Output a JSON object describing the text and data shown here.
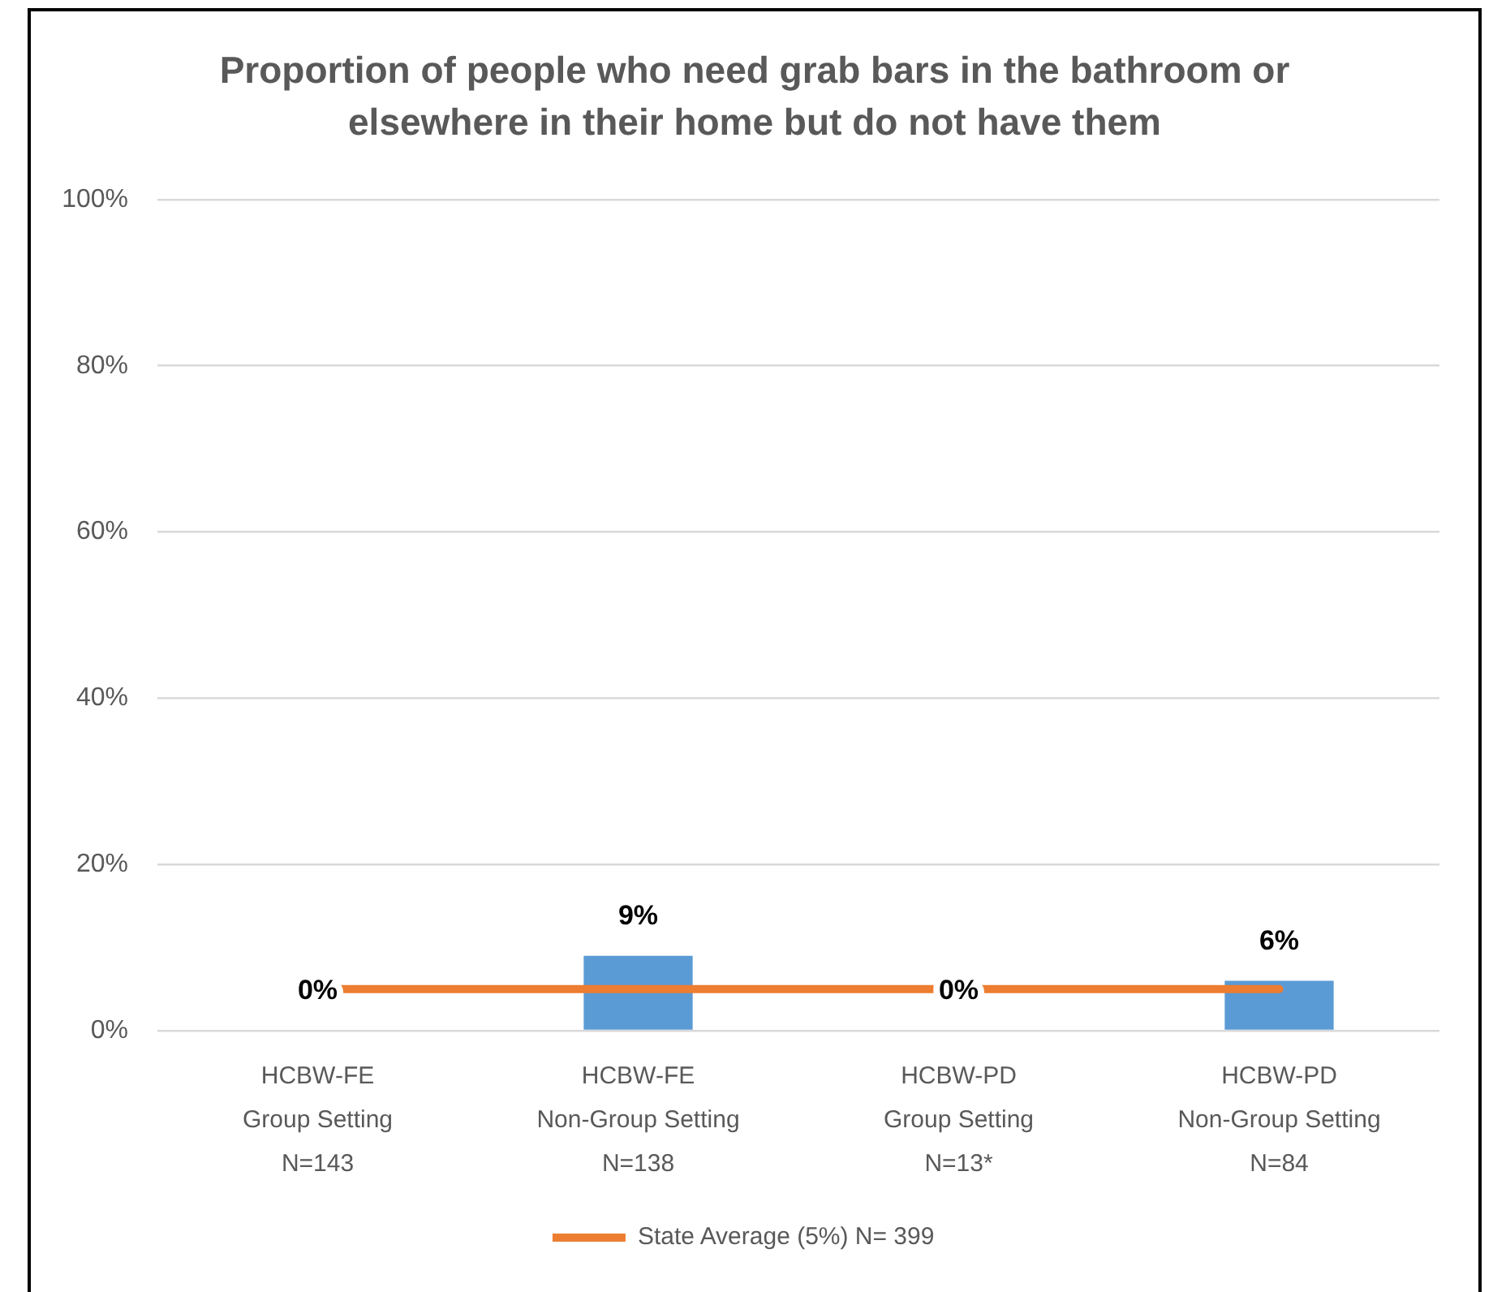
{
  "chart_data": {
    "type": "bar",
    "title": "Proportion of people who need grab bars in the bathroom or elsewhere in their home but do not have them",
    "categories": [
      "HCBW-FE\nGroup Setting\nN=143",
      "HCBW-FE\nNon-Group Setting\nN=138",
      "HCBW-PD\nGroup Setting\nN=13*",
      "HCBW-PD\nNon-Group Setting\nN=84"
    ],
    "series": [
      {
        "color": "#5b9bd5",
        "values": [
          0,
          9,
          0,
          6
        ],
        "value_labels": [
          "0%",
          "9%",
          "0%",
          "6%"
        ]
      },
      {
        "type": "line",
        "name": "State Average (5%) N= 399",
        "color": "#ed7d31",
        "values": [
          5,
          5,
          5,
          5
        ]
      }
    ],
    "ylim": [
      0,
      100
    ],
    "yticks": [
      {
        "value": 0,
        "label": "0%"
      },
      {
        "value": 20,
        "label": "20%"
      },
      {
        "value": 40,
        "label": "40%"
      },
      {
        "value": 60,
        "label": "60%"
      },
      {
        "value": 80,
        "label": "80%"
      },
      {
        "value": 100,
        "label": "100%"
      }
    ],
    "grid": "y",
    "legend": "bottom",
    "marker": "none"
  }
}
